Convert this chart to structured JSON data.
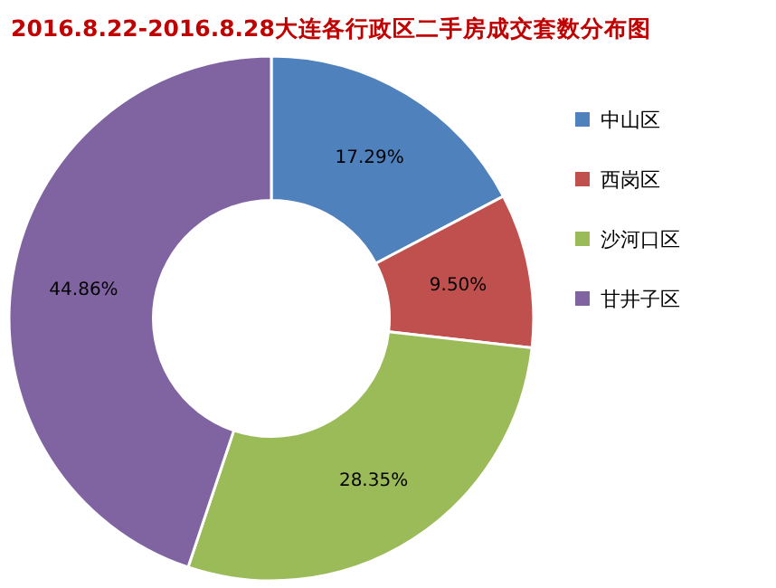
{
  "chart_data": {
    "type": "donut",
    "title": "2016.8.22-2016.8.28大连各行政区二手房成交套数分布图",
    "categories": [
      "中山区",
      "西岗区",
      "沙河口区",
      "甘井子区"
    ],
    "values": [
      17.29,
      9.5,
      28.35,
      44.86
    ],
    "colors": [
      "#4f81bd",
      "#c0504d",
      "#9bbb59",
      "#8064a2"
    ],
    "value_labels": [
      "17.29%",
      "9.50%",
      "28.35%",
      "44.86%"
    ],
    "legend": "right"
  }
}
